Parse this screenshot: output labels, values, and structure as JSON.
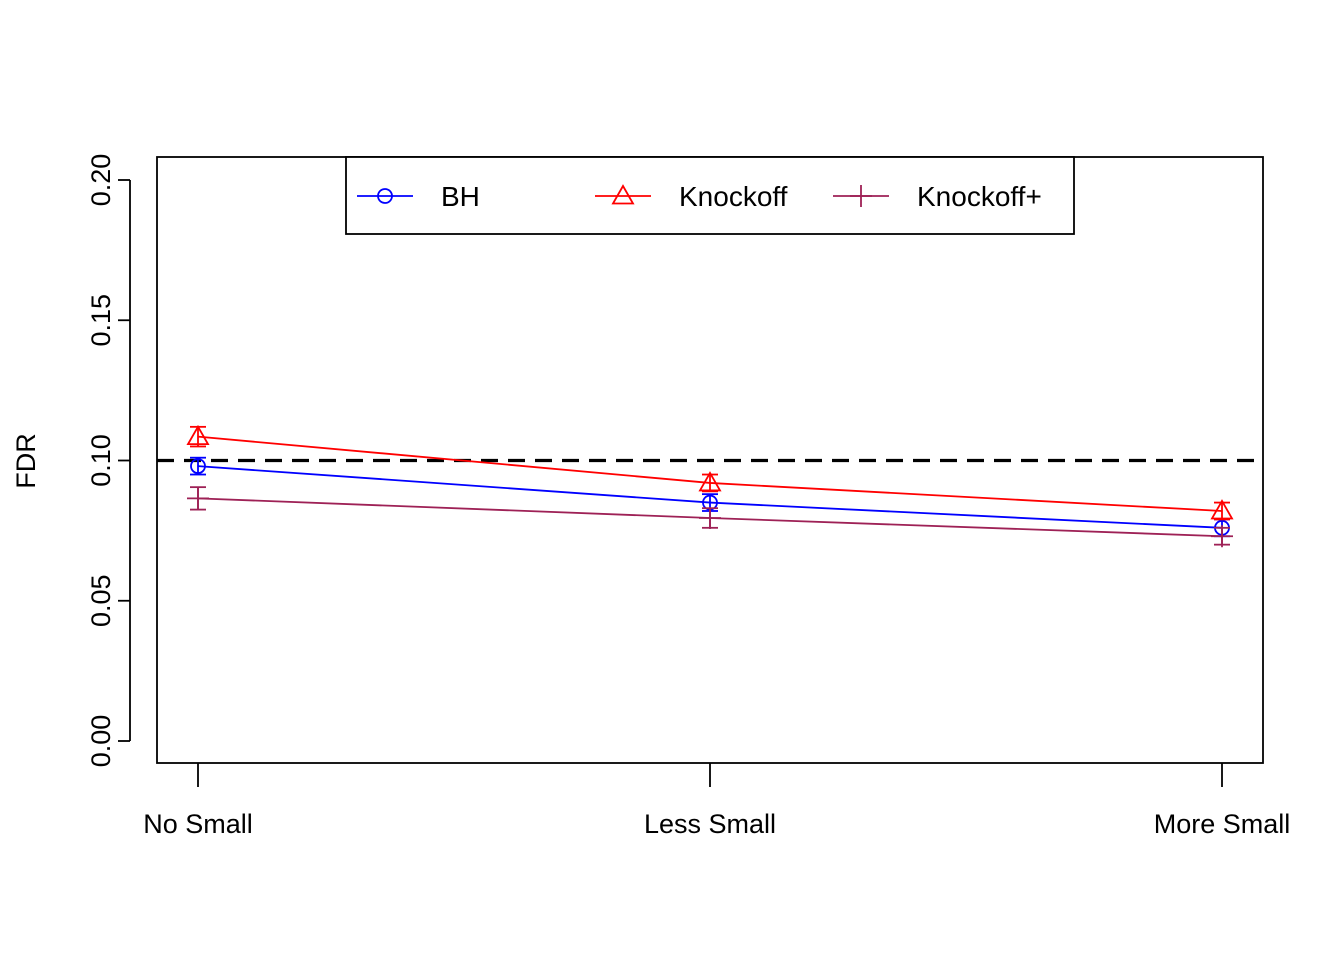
{
  "chart_data": {
    "type": "line",
    "title": "",
    "xlabel": "",
    "ylabel": "FDR",
    "categories": [
      "No Small",
      "Less Small",
      "More Small"
    ],
    "ylim": [
      0,
      0.2
    ],
    "yticks": [
      "0.00",
      "0.05",
      "0.10",
      "0.15",
      "0.20"
    ],
    "reference_line": {
      "y": 0.1,
      "style": "dashed",
      "color": "#000000"
    },
    "grid": false,
    "legend": {
      "placement": "top-center",
      "horizontal": true
    },
    "series": [
      {
        "name": "BH",
        "color": "#0000FF",
        "marker": "circle",
        "values": [
          0.098,
          0.085,
          0.076
        ],
        "error": [
          0.003,
          0.003,
          0.003
        ]
      },
      {
        "name": "Knockoff",
        "color": "#FF0000",
        "marker": "triangle",
        "values": [
          0.1085,
          0.092,
          0.082
        ],
        "error": [
          0.0035,
          0.003,
          0.003
        ]
      },
      {
        "name": "Knockoff+",
        "color": "#9E2156",
        "marker": "plus",
        "values": [
          0.0865,
          0.0795,
          0.073
        ],
        "error": [
          0.004,
          0.0035,
          0.003
        ]
      }
    ]
  }
}
